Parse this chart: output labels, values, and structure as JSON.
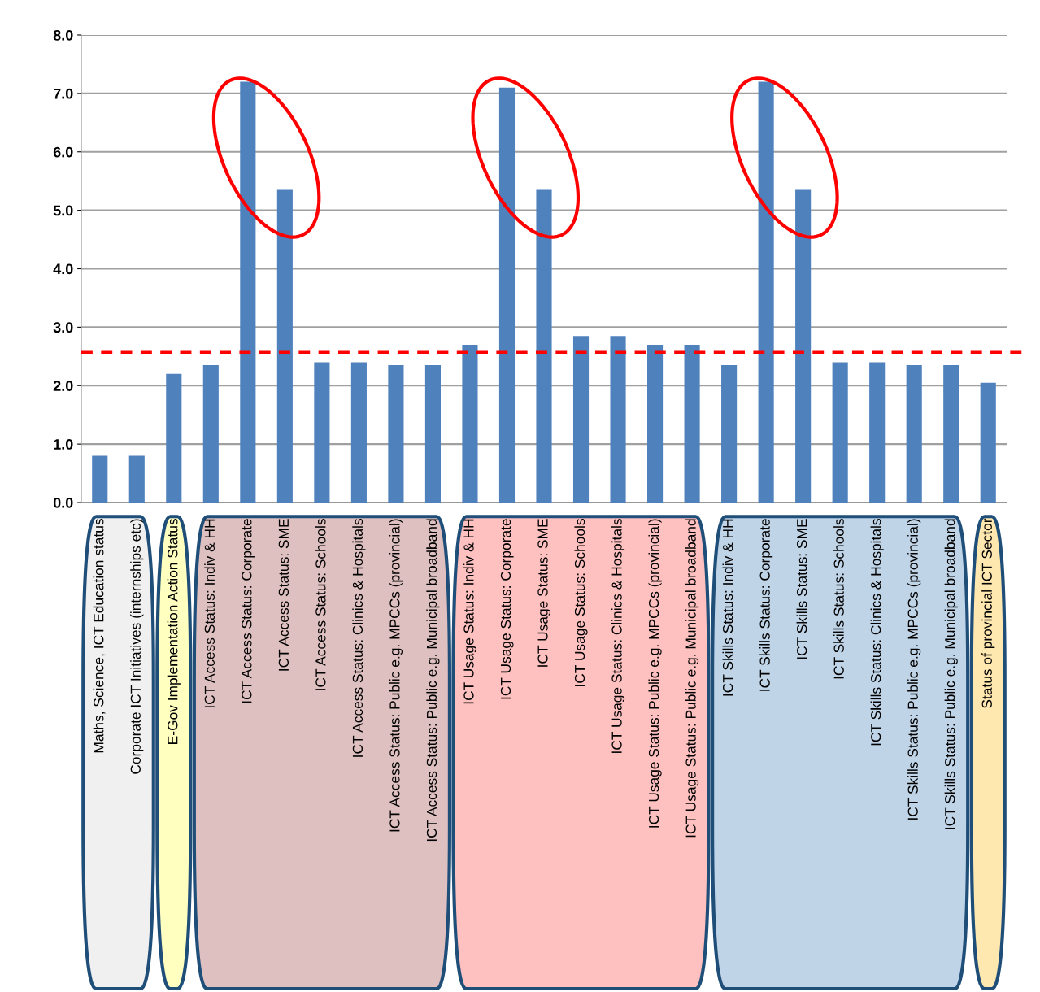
{
  "chart_data": {
    "type": "bar",
    "categories": [
      "Maths, Science, ICT Education status",
      "Corporate ICT Initiatives (internships etc)",
      "E-Gov Implementation Action Status",
      "ICT Access Status: Indiv & HH",
      "ICT Access Status: Corporate",
      "ICT Access Status: SME",
      "ICT Access Status: Schools",
      "ICT Access Status: Clinics & Hospitals",
      "ICT Access Status: Public e.g. MPCCs (provincial)",
      "ICT Access Status: Public e.g. Municipal broadband",
      "ICT Usage Status: Indiv & HH",
      "ICT Usage Status: Corporate",
      "ICT Usage Status: SME",
      "ICT Usage Status: Schools",
      "ICT Usage Status: Clinics & Hospitals",
      "ICT Usage Status: Public e.g. MPCCs (provincial)",
      "ICT Usage Status: Public e.g. Municipal broadband",
      "ICT Skills Status: Indiv & HH",
      "ICT Skills Status: Corporate",
      "ICT Skills Status: SME",
      "ICT Skills Status: Schools",
      "ICT Skills Status: Clinics & Hospitals",
      "ICT Skills Status: Public e.g. MPCCs (provincial)",
      "ICT Skills Status: Public e.g. Municipal broadband",
      "Status of provincial ICT Sector"
    ],
    "values": [
      0.8,
      0.8,
      2.2,
      2.35,
      7.2,
      5.35,
      2.4,
      2.4,
      2.35,
      2.35,
      2.7,
      7.1,
      5.35,
      2.85,
      2.85,
      2.7,
      2.7,
      2.35,
      7.2,
      5.35,
      2.4,
      2.4,
      2.35,
      2.35,
      2.05
    ],
    "color": "#4f81bd",
    "ylim": [
      0,
      8
    ],
    "yticks": [
      {
        "value": 0,
        "label": "0.0"
      },
      {
        "value": 1,
        "label": "1.0"
      },
      {
        "value": 2,
        "label": "2.0"
      },
      {
        "value": 3,
        "label": "3.0"
      },
      {
        "value": 4,
        "label": "4.0"
      },
      {
        "value": 5,
        "label": "5.0"
      },
      {
        "value": 6,
        "label": "6.0"
      },
      {
        "value": 7,
        "label": "7.0"
      },
      {
        "value": 8,
        "label": "8.0"
      }
    ],
    "grid": "y",
    "ref_lines": [
      {
        "axis": "y",
        "value": 2.57,
        "color": "#ff0000",
        "line_style": "dashed"
      }
    ]
  }
}
